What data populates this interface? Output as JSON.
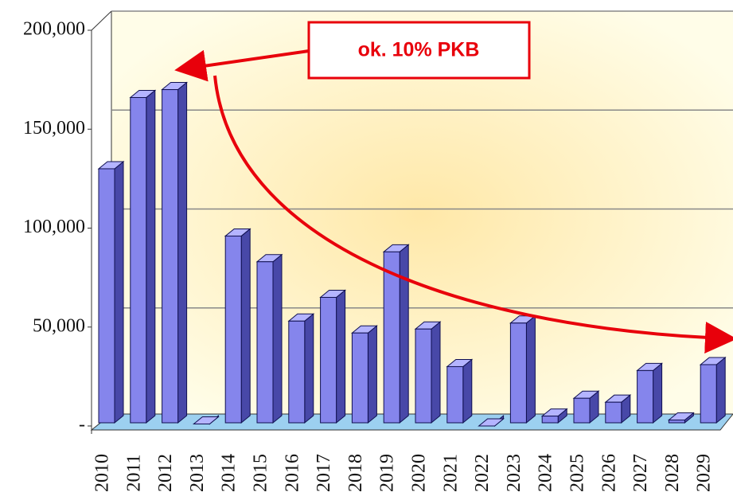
{
  "chart_data": {
    "type": "bar",
    "annotation": "ok. 10% PKB",
    "categories": [
      "2010",
      "2011",
      "2012",
      "2013",
      "2014",
      "2015",
      "2016",
      "2017",
      "2018",
      "2019",
      "2020",
      "2021",
      "2022",
      "2023",
      "2024",
      "2025",
      "2026",
      "2027",
      "2028",
      "2029"
    ],
    "values": [
      130000,
      166000,
      170000,
      1000,
      96000,
      83000,
      53000,
      65000,
      47000,
      88000,
      49000,
      30000,
      0,
      52000,
      5000,
      14000,
      12000,
      28000,
      3000,
      31000
    ],
    "color": "#8585ec",
    "ylim": [
      0,
      200000
    ],
    "yticks": [
      {
        "value": 0,
        "label": "-"
      },
      {
        "value": 50000,
        "label": "50,000"
      },
      {
        "value": 100000,
        "label": "100,000"
      },
      {
        "value": 150000,
        "label": "150,000"
      },
      {
        "value": 200000,
        "label": "200,000"
      }
    ],
    "grid": true
  }
}
